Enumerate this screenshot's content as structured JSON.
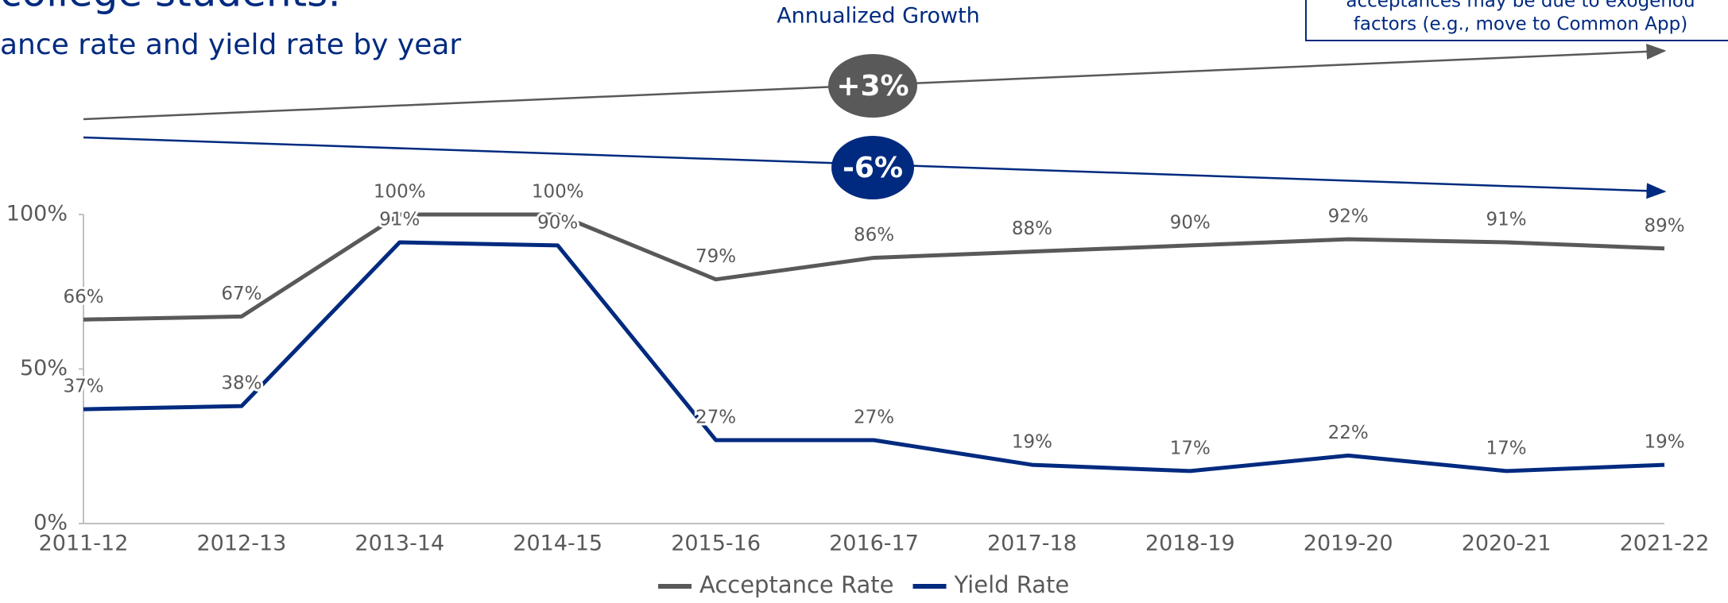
{
  "chart_data": {
    "type": "line",
    "title": "college students:",
    "subtitle": "ance rate and yield rate by year",
    "annotations": {
      "growth_title": "Annualized Growth",
      "acceptance_growth": "+3%",
      "yield_growth": "-6%",
      "note": [
        "acceptances may be due to exogenou",
        "factors (e.g., move to Common App)"
      ]
    },
    "categories": [
      "2011-12",
      "2012-13",
      "2013-14",
      "2014-15",
      "2015-16",
      "2016-17",
      "2017-18",
      "2018-19",
      "2019-20",
      "2020-21",
      "2021-22"
    ],
    "series": [
      {
        "name": "Acceptance Rate",
        "color": "#595959",
        "values": [
          66,
          67,
          100,
          100,
          79,
          86,
          88,
          90,
          92,
          91,
          89
        ],
        "value_labels": [
          "66%",
          "67%",
          "100%",
          "100%",
          "79%",
          "86%",
          "88%",
          "90%",
          "92%",
          "91%",
          "89%"
        ]
      },
      {
        "name": "Yield Rate",
        "color": "#002a7f",
        "values": [
          37,
          38,
          91,
          90,
          27,
          27,
          19,
          17,
          22,
          17,
          19
        ],
        "value_labels": [
          "37%",
          "38%",
          "91%",
          "90%",
          "27%",
          "27%",
          "19%",
          "17%",
          "22%",
          "17%",
          "19%"
        ]
      }
    ],
    "ylim": [
      0,
      100
    ],
    "yticks": [
      {
        "value": 0,
        "label": "0%"
      },
      {
        "value": 50,
        "label": "50%"
      },
      {
        "value": 100,
        "label": "100%"
      }
    ],
    "grid": false
  }
}
